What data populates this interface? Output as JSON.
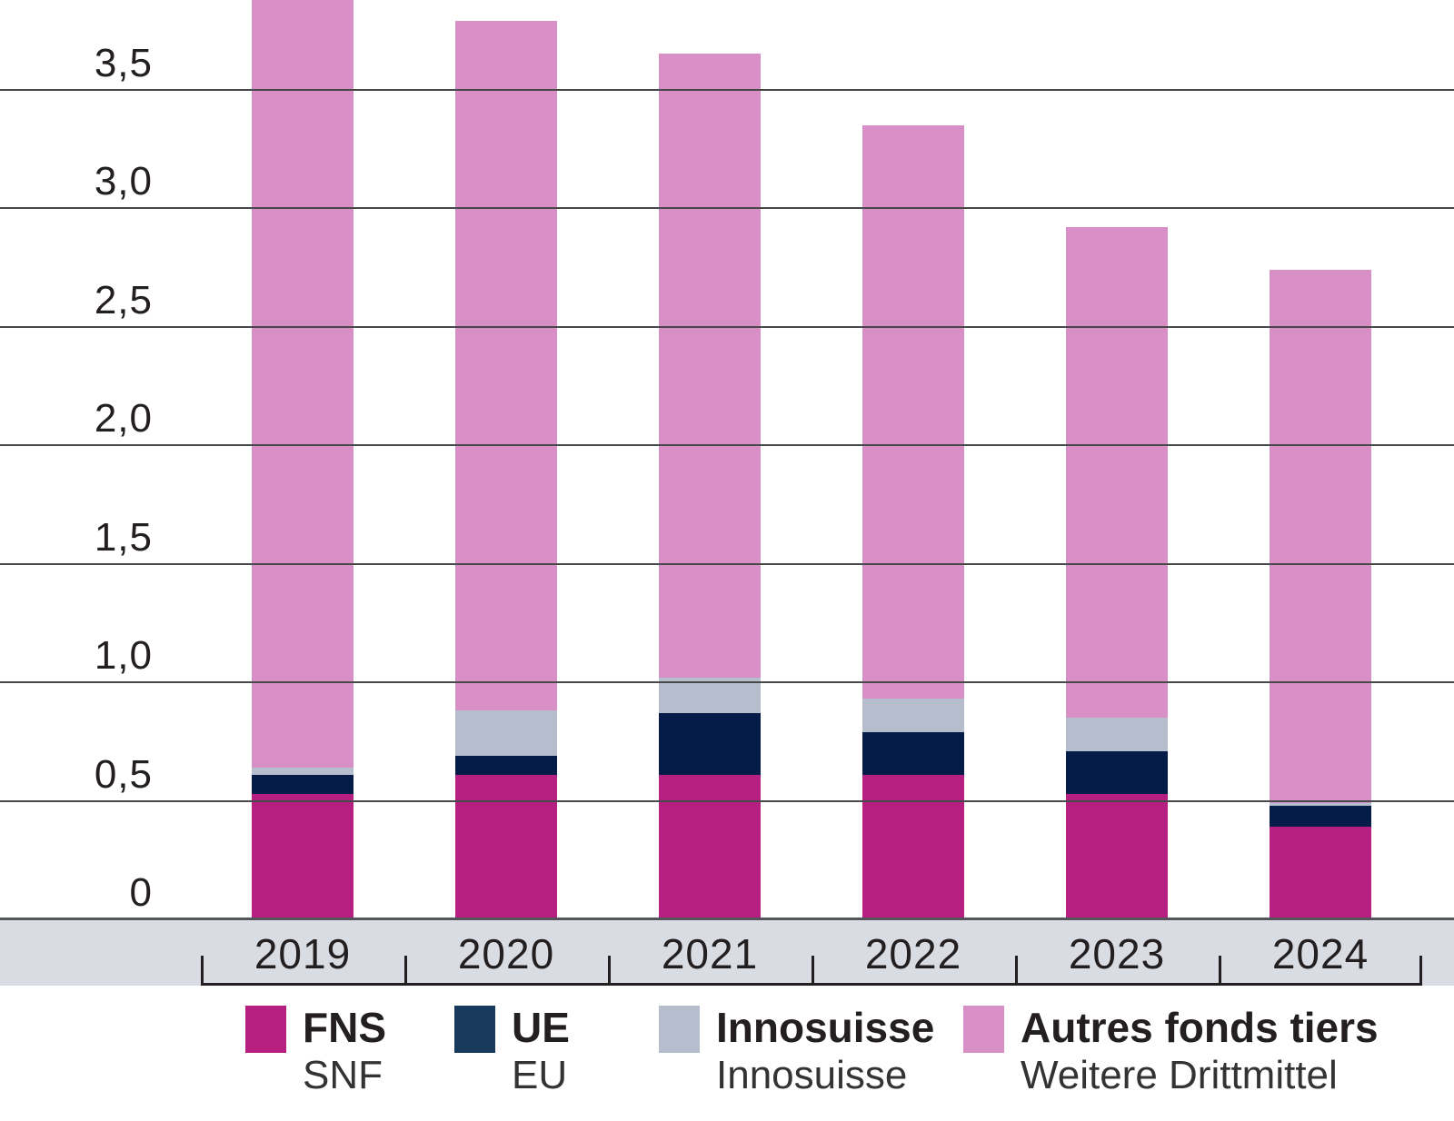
{
  "chart_data": {
    "type": "bar",
    "stacked": true,
    "title": "",
    "xlabel": "",
    "ylabel": "",
    "categories": [
      "2019",
      "2020",
      "2021",
      "2022",
      "2023",
      "2024"
    ],
    "series": [
      {
        "name_fr": "FNS",
        "name_de": "SNF",
        "color": "#b61e80",
        "legend_color": "#b61e80",
        "values": [
          0.53,
          0.61,
          0.61,
          0.61,
          0.53,
          0.39
        ]
      },
      {
        "name_fr": "UE",
        "name_de": "EU",
        "color": "#041c47",
        "legend_color": "#16395c",
        "values": [
          0.08,
          0.08,
          0.26,
          0.18,
          0.18,
          0.09
        ]
      },
      {
        "name_fr": "Innosuisse",
        "name_de": "Innosuisse",
        "color": "#b6bdcc",
        "legend_color": "#b6bdcc",
        "values": [
          0.03,
          0.19,
          0.15,
          0.14,
          0.14,
          0.01
        ]
      },
      {
        "name_fr": "Autres fonds tiers",
        "name_de": "Weitere Drittmittel",
        "color": "#d78fc5",
        "legend_color": "#d78fc5",
        "values": [
          3.28,
          2.91,
          2.63,
          2.42,
          2.07,
          2.25
        ]
      }
    ],
    "totals": [
      3.92,
      3.79,
      3.65,
      3.35,
      2.92,
      2.74
    ],
    "y_ticks": {
      "values": [
        3.5,
        3.0,
        2.5,
        2.0,
        1.5,
        1.0,
        0.5,
        0
      ],
      "labels": [
        "3,5",
        "3,0",
        "2,5",
        "2,0",
        "1,5",
        "1,0",
        "0,5",
        "0"
      ]
    },
    "ylim": [
      0,
      3.88
    ],
    "grid": true,
    "legend_position": "bottom",
    "note_top_clipped_bar": "2019"
  },
  "colors": {
    "axis_band": "#d9dce3",
    "gridline": "#47484a",
    "baseline": "#55565a",
    "bracket": "#231f20",
    "text": "#231f20"
  }
}
